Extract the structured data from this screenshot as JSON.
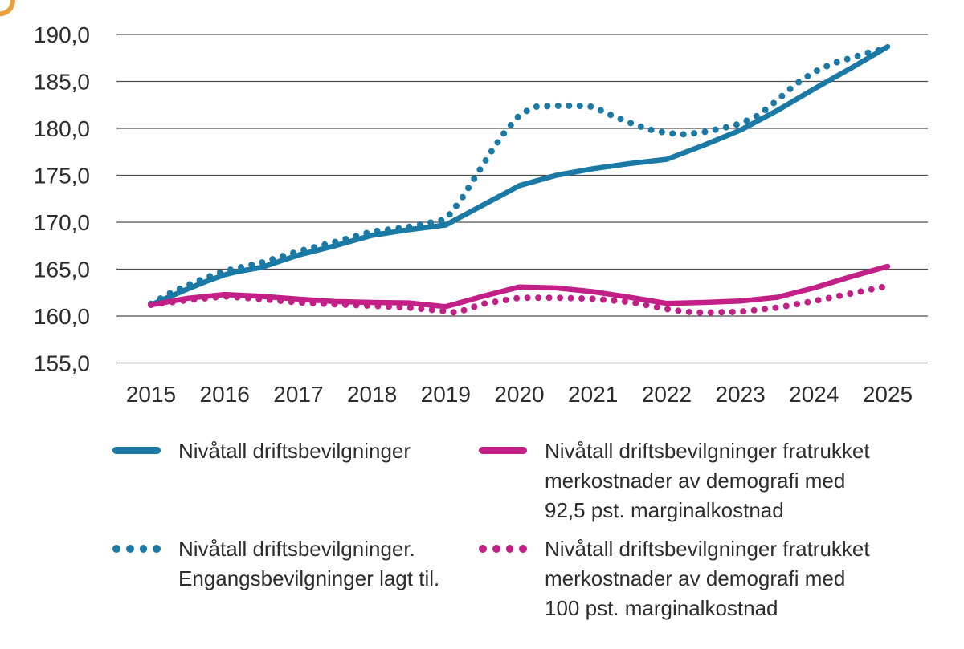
{
  "figure": {
    "corner_mark_color": "#E9A13E",
    "background_color": "#ffffff",
    "gridline_color": "#4d4d4d",
    "text_color": "#2d2d2d"
  },
  "chart_data": {
    "type": "line",
    "title": "",
    "xlabel": "",
    "ylabel": "",
    "grid": true,
    "legend_position": "bottom",
    "xlim": [
      2014.5,
      2025.55
    ],
    "ylim": [
      155,
      190
    ],
    "x_ticks": [
      "2015",
      "2016",
      "2017",
      "2018",
      "2019",
      "2020",
      "2021",
      "2022",
      "2023",
      "2024",
      "2025"
    ],
    "y_ticks": [
      {
        "value": 190,
        "label": "190,0"
      },
      {
        "value": 185,
        "label": "185,0"
      },
      {
        "value": 180,
        "label": "180,0"
      },
      {
        "value": 175,
        "label": "175,0"
      },
      {
        "value": 170,
        "label": "170,0"
      },
      {
        "value": 165,
        "label": "165,0"
      },
      {
        "value": 160,
        "label": "160,0"
      },
      {
        "value": 155,
        "label": "155,0"
      }
    ],
    "series": [
      {
        "id": "driftsbevilgninger",
        "name": "Nivåtall driftsbevilgninger",
        "color": "#1a7aa5",
        "style": "solid",
        "points": [
          [
            2015,
            161.2
          ],
          [
            2015.25,
            162.05
          ],
          [
            2015.5,
            162.9
          ],
          [
            2015.75,
            163.7
          ],
          [
            2016,
            164.4
          ],
          [
            2016.15,
            164.7
          ],
          [
            2016.5,
            165.2
          ],
          [
            2017,
            166.5
          ],
          [
            2017.5,
            167.5
          ],
          [
            2018,
            168.6
          ],
          [
            2018.5,
            169.2
          ],
          [
            2019,
            169.7
          ],
          [
            2019.5,
            171.8
          ],
          [
            2020,
            173.9
          ],
          [
            2020.5,
            175.0
          ],
          [
            2021,
            175.7
          ],
          [
            2021.5,
            176.25
          ],
          [
            2022,
            176.7
          ],
          [
            2022.5,
            178.2
          ],
          [
            2023,
            179.8
          ],
          [
            2023.5,
            181.9
          ],
          [
            2024,
            184.2
          ],
          [
            2024.5,
            186.4
          ],
          [
            2025,
            188.7
          ]
        ]
      },
      {
        "id": "fratrukket-92-5",
        "name": "Nivåtall driftsbevilgninger fratrukket\nmerkostnader av demografi med\n92,5 pst. marginalkostnad",
        "color": "#c21f87",
        "style": "solid",
        "points": [
          [
            2015,
            161.2
          ],
          [
            2015.5,
            161.9
          ],
          [
            2016,
            162.3
          ],
          [
            2016.5,
            162.1
          ],
          [
            2017,
            161.8
          ],
          [
            2017.5,
            161.55
          ],
          [
            2018,
            161.45
          ],
          [
            2018.5,
            161.4
          ],
          [
            2019,
            161.0
          ],
          [
            2019.5,
            162.1
          ],
          [
            2020,
            163.1
          ],
          [
            2020.5,
            163.0
          ],
          [
            2021,
            162.6
          ],
          [
            2021.5,
            162.0
          ],
          [
            2022,
            161.35
          ],
          [
            2022.5,
            161.45
          ],
          [
            2023,
            161.6
          ],
          [
            2023.5,
            162.0
          ],
          [
            2024,
            163.0
          ],
          [
            2024.5,
            164.2
          ],
          [
            2025,
            165.3
          ]
        ]
      },
      {
        "id": "driftsbevilgninger-engangs",
        "name": "Nivåtall driftsbevilgninger.\nEngangsbevilgninger lagt til.",
        "color": "#1a7aa5",
        "style": "dotted",
        "points": [
          [
            2015,
            161.3
          ],
          [
            2015.25,
            162.4
          ],
          [
            2015.5,
            163.3
          ],
          [
            2015.75,
            164.1
          ],
          [
            2016,
            164.8
          ],
          [
            2016.5,
            165.7
          ],
          [
            2017,
            166.9
          ],
          [
            2017.5,
            167.9
          ],
          [
            2018,
            169.0
          ],
          [
            2018.5,
            169.5
          ],
          [
            2019,
            170.3
          ],
          [
            2019.2,
            172.3
          ],
          [
            2019.4,
            174.8
          ],
          [
            2019.6,
            177.3
          ],
          [
            2019.8,
            179.6
          ],
          [
            2020,
            181.4
          ],
          [
            2020.2,
            182.3
          ],
          [
            2020.5,
            182.4
          ],
          [
            2020.8,
            182.4
          ],
          [
            2021,
            182.3
          ],
          [
            2021.25,
            181.4
          ],
          [
            2021.5,
            180.6
          ],
          [
            2021.75,
            179.9
          ],
          [
            2022,
            179.5
          ],
          [
            2022.25,
            179.35
          ],
          [
            2022.5,
            179.6
          ],
          [
            2022.75,
            180.0
          ],
          [
            2023,
            180.5
          ],
          [
            2023.25,
            181.4
          ],
          [
            2023.5,
            183.0
          ],
          [
            2023.75,
            184.7
          ],
          [
            2024,
            186.0
          ],
          [
            2024.25,
            186.9
          ],
          [
            2024.5,
            187.5
          ],
          [
            2024.75,
            188.1
          ],
          [
            2025,
            188.5
          ]
        ]
      },
      {
        "id": "fratrukket-100",
        "name": "Nivåtall driftsbevilgninger fratrukket\nmerkostnader av demografi med\n100 pst. marginalkostnad",
        "color": "#c21f87",
        "style": "dotted",
        "points": [
          [
            2015,
            161.2
          ],
          [
            2015.5,
            161.7
          ],
          [
            2016,
            162.1
          ],
          [
            2016.5,
            161.8
          ],
          [
            2017,
            161.45
          ],
          [
            2017.5,
            161.25
          ],
          [
            2018,
            161.1
          ],
          [
            2018.5,
            160.9
          ],
          [
            2019,
            160.5
          ],
          [
            2019.15,
            160.35
          ],
          [
            2019.5,
            161.3
          ],
          [
            2020,
            161.95
          ],
          [
            2020.5,
            161.95
          ],
          [
            2021,
            161.85
          ],
          [
            2021.5,
            161.5
          ],
          [
            2022,
            160.75
          ],
          [
            2022.25,
            160.45
          ],
          [
            2022.5,
            160.35
          ],
          [
            2023,
            160.45
          ],
          [
            2023.5,
            160.9
          ],
          [
            2024,
            161.6
          ],
          [
            2024.5,
            162.4
          ],
          [
            2025,
            163.2
          ]
        ]
      }
    ]
  },
  "legend": {
    "items": [
      {
        "series_index": 0
      },
      {
        "series_index": 1
      },
      {
        "series_index": 2
      },
      {
        "series_index": 3
      }
    ]
  }
}
